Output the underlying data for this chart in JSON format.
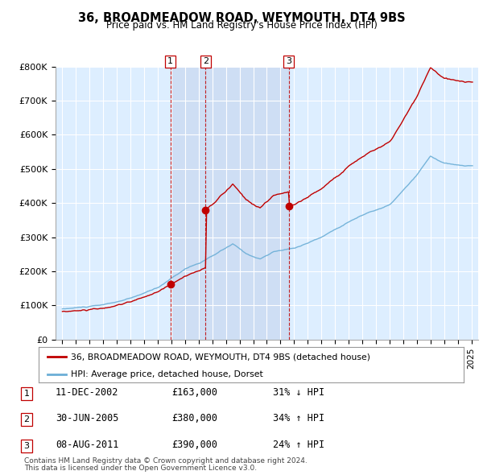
{
  "title": "36, BROADMEADOW ROAD, WEYMOUTH, DT4 9BS",
  "subtitle": "Price paid vs. HM Land Registry's House Price Index (HPI)",
  "legend_line1": "36, BROADMEADOW ROAD, WEYMOUTH, DT4 9BS (detached house)",
  "legend_line2": "HPI: Average price, detached house, Dorset",
  "footer1": "Contains HM Land Registry data © Crown copyright and database right 2024.",
  "footer2": "This data is licensed under the Open Government Licence v3.0.",
  "transactions": [
    {
      "num": 1,
      "date": "11-DEC-2002",
      "price": "£163,000",
      "hpi": "31% ↓ HPI"
    },
    {
      "num": 2,
      "date": "30-JUN-2005",
      "price": "£380,000",
      "hpi": "34% ↑ HPI"
    },
    {
      "num": 3,
      "date": "08-AUG-2011",
      "price": "£390,000",
      "hpi": "24% ↑ HPI"
    }
  ],
  "hpi_color": "#6baed6",
  "price_color": "#c00000",
  "vline_color": "#c00000",
  "background_color": "#ffffff",
  "chart_bg_color": "#ddeeff",
  "shade_color": "#c8d8f0",
  "grid_color": "#cccccc",
  "transaction_years": [
    2002.92,
    2005.5,
    2011.6
  ],
  "transaction_values": [
    163000,
    380000,
    390000
  ],
  "ylim": [
    0,
    800000
  ],
  "xlim": [
    1994.5,
    2025.5
  ],
  "yticks": [
    0,
    100000,
    200000,
    300000,
    400000,
    500000,
    600000,
    700000,
    800000
  ],
  "ytick_labels": [
    "£0",
    "£100K",
    "£200K",
    "£300K",
    "£400K",
    "£500K",
    "£600K",
    "£700K",
    "£800K"
  ],
  "xticks": [
    1995,
    1996,
    1997,
    1998,
    1999,
    2000,
    2001,
    2002,
    2003,
    2004,
    2005,
    2006,
    2007,
    2008,
    2009,
    2010,
    2011,
    2012,
    2013,
    2014,
    2015,
    2016,
    2017,
    2018,
    2019,
    2020,
    2021,
    2022,
    2023,
    2024,
    2025
  ]
}
